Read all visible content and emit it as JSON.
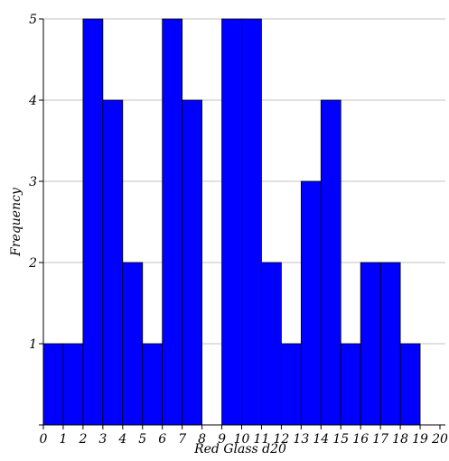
{
  "chart_data": {
    "type": "bar",
    "subtype": "histogram",
    "title": "",
    "xlabel": "Red Glass d20",
    "ylabel": "Frequency",
    "x_bin_edges": [
      0,
      1,
      2,
      3,
      4,
      5,
      6,
      7,
      8,
      9,
      10,
      11,
      12,
      13,
      14,
      15,
      16,
      17,
      18,
      19,
      20
    ],
    "values": [
      1,
      1,
      5,
      4,
      2,
      1,
      5,
      4,
      0,
      5,
      5,
      2,
      1,
      3,
      4,
      1,
      2,
      2,
      1,
      0
    ],
    "xlim": [
      0,
      20
    ],
    "ylim": [
      0,
      5
    ],
    "xticks": [
      0,
      1,
      2,
      3,
      4,
      5,
      6,
      7,
      8,
      9,
      10,
      11,
      12,
      13,
      14,
      15,
      16,
      17,
      18,
      19,
      20
    ],
    "yticks": [
      1,
      2,
      3,
      4,
      5
    ],
    "grid": "horizontal",
    "bar_color": "#0000ff",
    "edge_color": "#000000",
    "grid_color": "#c0c0c0"
  }
}
